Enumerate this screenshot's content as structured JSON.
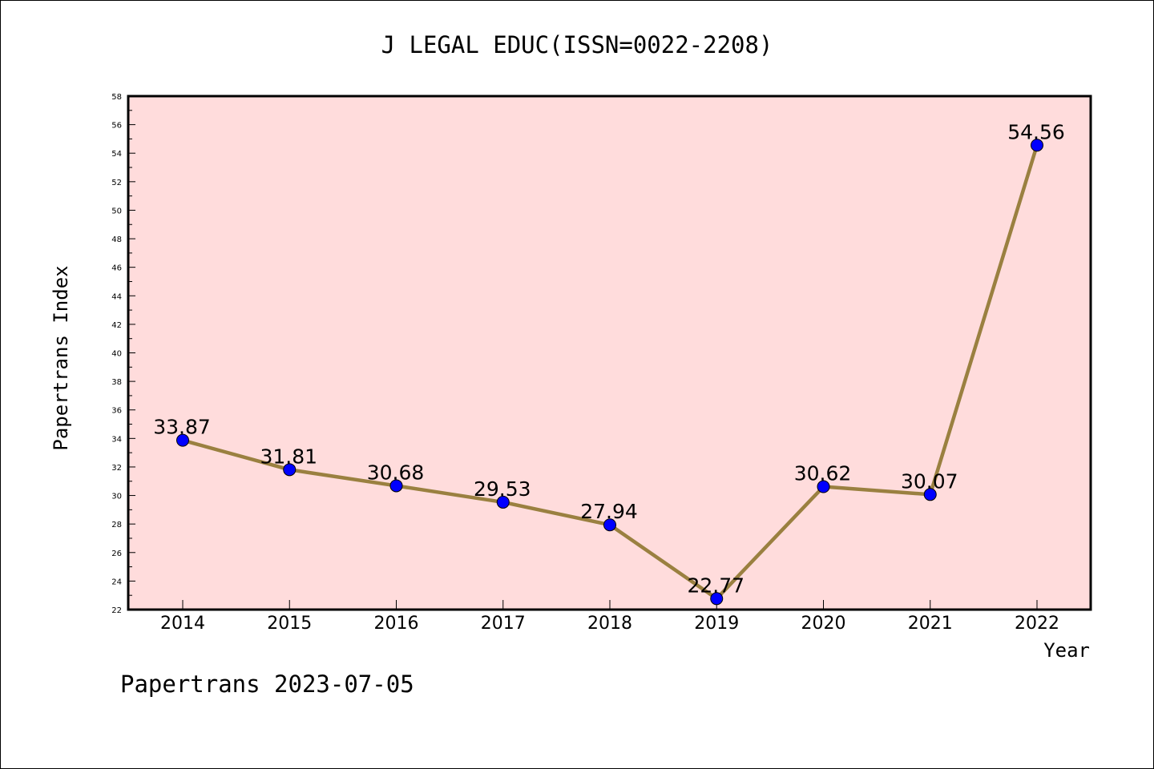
{
  "chart_data": {
    "type": "line",
    "title": "J LEGAL EDUC(ISSN=0022-2208)",
    "xlabel": "Year",
    "ylabel": "Papertrans Index",
    "x": [
      "2014",
      "2015",
      "2016",
      "2017",
      "2018",
      "2019",
      "2020",
      "2021",
      "2022"
    ],
    "series": [
      {
        "values": [
          33.87,
          31.81,
          30.68,
          29.53,
          27.94,
          22.77,
          30.62,
          30.07,
          54.56
        ],
        "labels": [
          "33.87",
          "31.81",
          "30.68",
          "29.53",
          "27.94",
          "22.77",
          "30.62",
          "30.07",
          "54.56"
        ]
      }
    ],
    "ylim": [
      22,
      58
    ],
    "yticks": [
      "22",
      "24",
      "26",
      "28",
      "30",
      "32",
      "34",
      "36",
      "38",
      "40",
      "42",
      "44",
      "46",
      "48",
      "50",
      "52",
      "54",
      "56",
      "58"
    ],
    "grid": false,
    "line_color": "#9a8040",
    "marker_color": "#0000ff",
    "plot_background": "#ffdcdc",
    "footer": "Papertrans 2023-07-05"
  }
}
